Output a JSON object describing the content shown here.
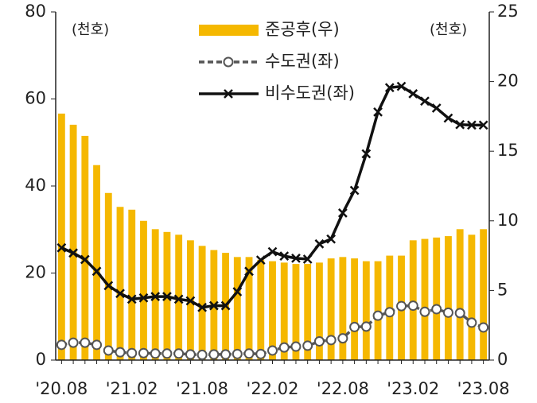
{
  "chart_data": {
    "type": "bar-line",
    "categories": [
      "'20.08",
      null,
      null,
      null,
      null,
      null,
      "'21.02",
      null,
      null,
      null,
      null,
      null,
      "'21.08",
      null,
      null,
      null,
      null,
      null,
      "'22.02",
      null,
      null,
      null,
      null,
      null,
      "'22.08",
      null,
      null,
      null,
      null,
      null,
      "'23.02",
      null,
      null,
      null,
      null,
      null,
      "'23.08"
    ],
    "series": [
      {
        "name": "준공후(우)",
        "type": "bar",
        "axis": "y2",
        "color": "#f5b800",
        "values": [
          17.7,
          16.9,
          16.1,
          14.0,
          12.0,
          11.0,
          10.8,
          10.0,
          9.4,
          9.2,
          9.0,
          8.6,
          8.2,
          7.9,
          7.7,
          7.4,
          7.4,
          7.2,
          7.1,
          7.0,
          6.9,
          6.9,
          7.0,
          7.3,
          7.4,
          7.3,
          7.1,
          7.1,
          7.5,
          7.5,
          8.6,
          8.7,
          8.8,
          8.9,
          9.4,
          9.0,
          9.4
        ]
      },
      {
        "name": "수도권(좌)",
        "type": "line",
        "color": "#555555",
        "dashed": true,
        "marker": "circle",
        "values": [
          3.5,
          4,
          4,
          3.5,
          2.2,
          1.8,
          1.6,
          1.6,
          1.5,
          1.5,
          1.5,
          1.3,
          1.2,
          1.3,
          1.3,
          1.4,
          1.5,
          1.4,
          2.2,
          2.9,
          3.1,
          3.3,
          4.3,
          4.6,
          5.0,
          7.6,
          7.7,
          10.2,
          11.0,
          12.4,
          12.5,
          11.1,
          11.7,
          10.9,
          10.8,
          8.6,
          7.5
        ]
      },
      {
        "name": "비수도권(좌)",
        "type": "line",
        "color": "#111111",
        "dashed": false,
        "marker": "x",
        "values": [
          25.8,
          24.6,
          23.1,
          20.4,
          17.1,
          15.3,
          14.0,
          14.3,
          14.6,
          14.6,
          14.0,
          13.6,
          12.1,
          12.5,
          12.5,
          15.7,
          20.4,
          23.0,
          24.9,
          23.9,
          23.4,
          23.2,
          26.7,
          27.8,
          33.8,
          39.0,
          47.4,
          57.0,
          62.6,
          62.9,
          61.2,
          59.5,
          57.9,
          55.6,
          54.1,
          54.0,
          54.0
        ]
      }
    ],
    "ylim": [
      0,
      80
    ],
    "yticks": [
      0,
      20,
      40,
      60,
      80
    ],
    "y2lim": [
      0,
      25
    ],
    "y2ticks": [
      0,
      5,
      10,
      15,
      20,
      25
    ],
    "y_unit": "(천호)",
    "y2_unit": "(천호)"
  }
}
